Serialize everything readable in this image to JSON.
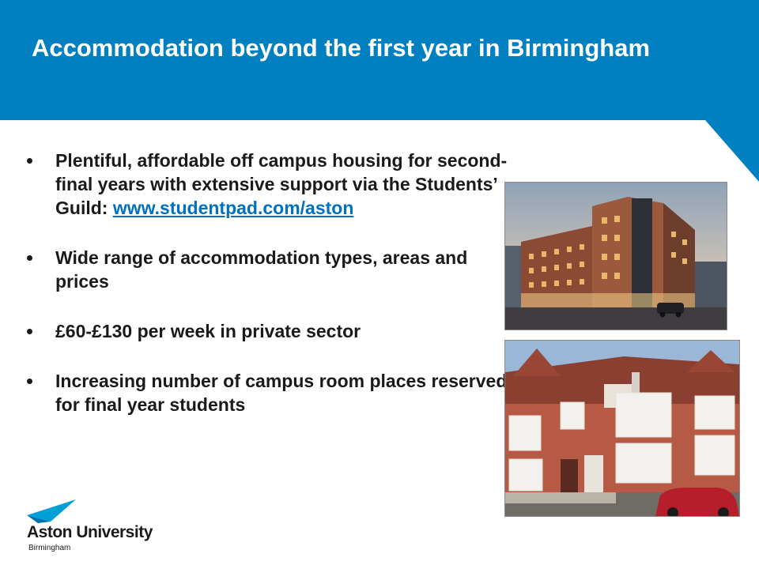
{
  "slide": {
    "title": "Accommodation beyond the first year in Birmingham",
    "bullets": [
      {
        "text": "Plentiful, affordable off campus housing for second-final years with extensive support via the Students’ Guild:",
        "link": "www.studentpad.com/aston"
      },
      {
        "text": "Wide range of accommodation types, areas and prices"
      },
      {
        "text": "£60-£130 per week in private sector"
      },
      {
        "text": "Increasing number of campus room places reserved for final year students"
      }
    ]
  },
  "logo": {
    "name": "Aston University",
    "city": "Birmingham"
  },
  "colors": {
    "brand_blue": "#0080c0",
    "link_blue": "#0070c0",
    "text": "#1a1a1a"
  },
  "images": [
    {
      "name": "photo-student-residence",
      "kind": "photo"
    },
    {
      "name": "photo-terraced-houses",
      "kind": "photo"
    }
  ]
}
